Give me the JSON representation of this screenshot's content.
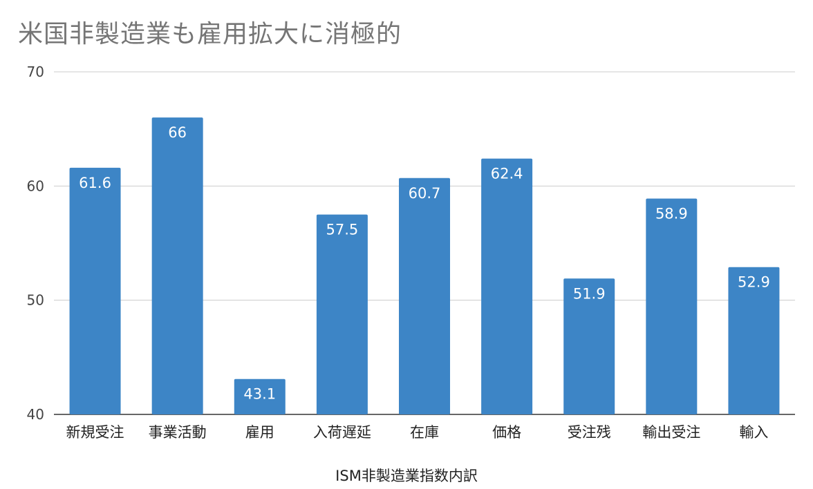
{
  "chart_data": {
    "type": "bar",
    "title": "米国非製造業も雇用拡大に消極的",
    "xlabel": "ISM非製造業指数内訳",
    "ylabel": "",
    "categories": [
      "新規受注",
      "事業活動",
      "雇用",
      "入荷遅延",
      "在庫",
      "価格",
      "受注残",
      "輸出受注",
      "輸入"
    ],
    "values": [
      61.6,
      66,
      43.1,
      57.5,
      60.7,
      62.4,
      51.9,
      58.9,
      52.9
    ],
    "value_labels": [
      "61.6",
      "66",
      "43.1",
      "57.5",
      "60.7",
      "62.4",
      "51.9",
      "58.9",
      "52.9"
    ],
    "ylim": [
      40,
      70
    ],
    "yticks": [
      40,
      50,
      60,
      70
    ],
    "grid": true,
    "legend": "none",
    "bar_color": "#3d85c6"
  }
}
